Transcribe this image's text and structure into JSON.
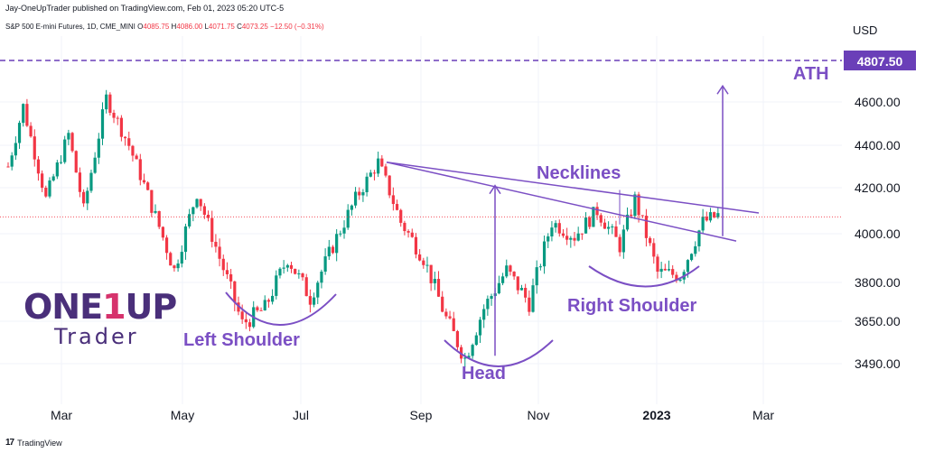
{
  "header": {
    "publisher": "Jay-OneUpTrader published on TradingView.com, Feb 01, 2023 05:20 UTC-5",
    "symbol": "S&P 500 E-mini Futures, 1D, CME_MINI",
    "o_label": "O",
    "o_value": "4085.75",
    "h_label": "H",
    "h_value": "4086.00",
    "l_label": "L",
    "l_value": "4071.75",
    "c_label": "C",
    "c_value": "4073.25",
    "change": "−12.50 (−0.31%)",
    "currency": "USD"
  },
  "chart_data": {
    "type": "candlestick",
    "y_axis": {
      "position": "right",
      "ticks": [
        "4600.00",
        "4400.00",
        "4200.00",
        "4000.00",
        "3800.00",
        "3650.00",
        "3490.00"
      ],
      "ath_label": "4807.50"
    },
    "x_axis": {
      "ticks": [
        "Mar",
        "May",
        "Jul",
        "Sep",
        "Nov",
        "2023",
        "Mar"
      ]
    },
    "ath_level": 4807.5,
    "last_price": 4073.25,
    "swings": [
      {
        "t": 0,
        "p": 4300
      },
      {
        "t": 4,
        "p": 4580
      },
      {
        "t": 10,
        "p": 4150
      },
      {
        "t": 16,
        "p": 4450
      },
      {
        "t": 20,
        "p": 4100
      },
      {
        "t": 26,
        "p": 4620
      },
      {
        "t": 32,
        "p": 4400
      },
      {
        "t": 38,
        "p": 4120
      },
      {
        "t": 44,
        "p": 3850
      },
      {
        "t": 50,
        "p": 4180
      },
      {
        "t": 56,
        "p": 3900
      },
      {
        "t": 62,
        "p": 3640
      },
      {
        "t": 68,
        "p": 3700
      },
      {
        "t": 74,
        "p": 3900
      },
      {
        "t": 80,
        "p": 3740
      },
      {
        "t": 86,
        "p": 3950
      },
      {
        "t": 92,
        "p": 4150
      },
      {
        "t": 98,
        "p": 4320
      },
      {
        "t": 104,
        "p": 4050
      },
      {
        "t": 110,
        "p": 3900
      },
      {
        "t": 116,
        "p": 3660
      },
      {
        "t": 121,
        "p": 3510
      },
      {
        "t": 126,
        "p": 3700
      },
      {
        "t": 132,
        "p": 3850
      },
      {
        "t": 138,
        "p": 3720
      },
      {
        "t": 144,
        "p": 4050
      },
      {
        "t": 150,
        "p": 3990
      },
      {
        "t": 156,
        "p": 4100
      },
      {
        "t": 162,
        "p": 3950
      },
      {
        "t": 166,
        "p": 4150
      },
      {
        "t": 172,
        "p": 3840
      },
      {
        "t": 178,
        "p": 3830
      },
      {
        "t": 184,
        "p": 4050
      },
      {
        "t": 188,
        "p": 4080
      }
    ],
    "annotations": {
      "ath": "ATH",
      "necklines": "Necklines",
      "left_shoulder": "Left Shoulder",
      "head": "Head",
      "right_shoulder": "Right Shoulder"
    }
  },
  "colors": {
    "up": "#089981",
    "down": "#f23645",
    "annotation": "#7b4fc4",
    "ath_line": "#6a3fb8",
    "grid": "#f0f3fa"
  },
  "brand": {
    "top_a": "ONE",
    "top_b": "1",
    "top_c": "UP",
    "bottom": "Trader"
  },
  "footer": {
    "logo": "17",
    "label": "TradingView"
  }
}
